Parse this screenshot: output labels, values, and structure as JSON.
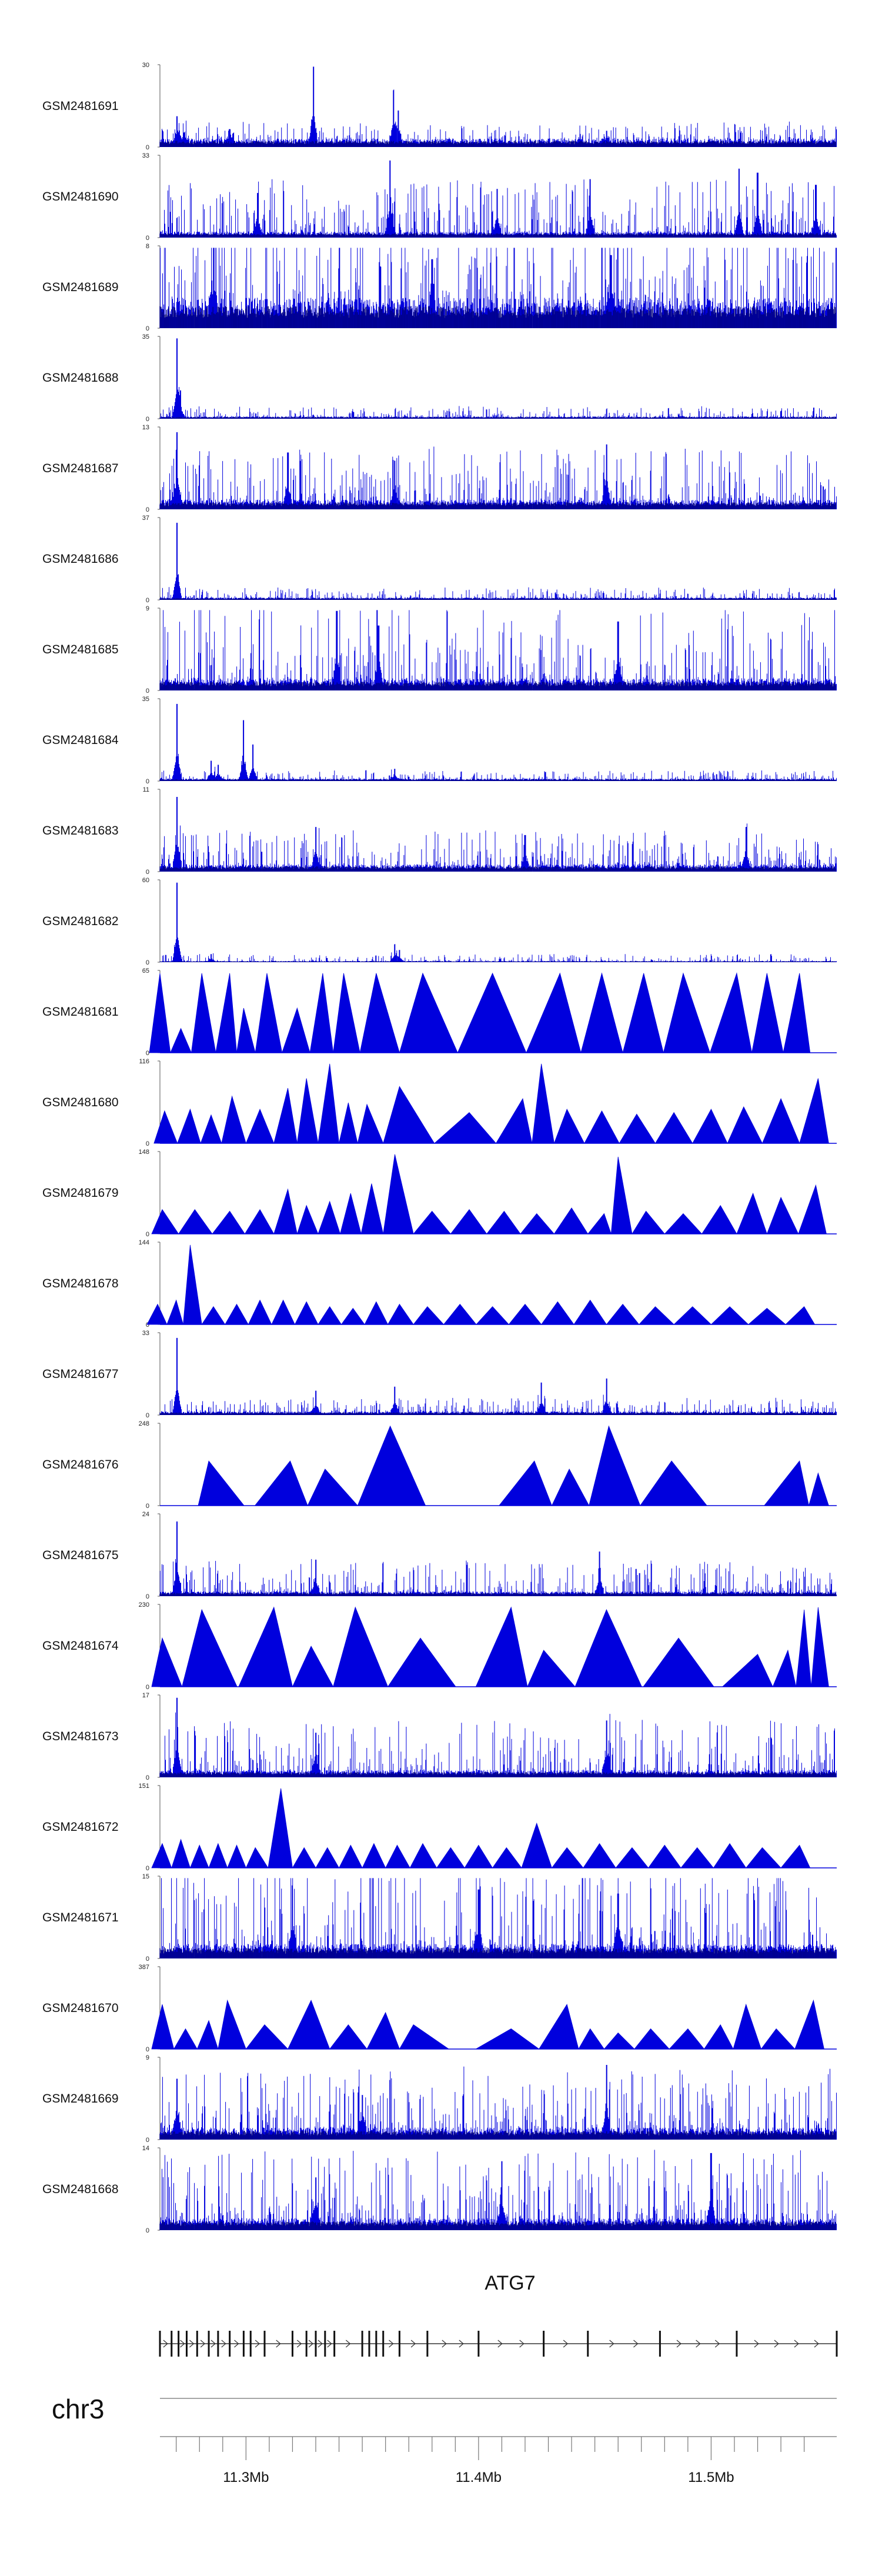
{
  "chart_data": {
    "type": "area",
    "description_text_free": true,
    "tracks": [
      {
        "name": "GSM2481691",
        "ymax": 30,
        "ymin": 0,
        "kind": "dense",
        "seed": 91,
        "base": 0.07,
        "noise": 0.1,
        "spikes": [
          [
            11.2704,
            0.38
          ],
          [
            11.2735,
            0.18
          ],
          [
            11.293,
            0.22
          ],
          [
            11.329,
            1.0
          ],
          [
            11.3635,
            0.7
          ],
          [
            11.3655,
            0.45
          ],
          [
            11.455,
            0.2
          ]
        ]
      },
      {
        "name": "GSM2481690",
        "ymax": 33,
        "ymin": 0,
        "kind": "mixed",
        "seed": 90,
        "base": 0.05,
        "noise": 0.3,
        "spikes": [
          [
            11.305,
            0.55
          ],
          [
            11.362,
            0.95
          ],
          [
            11.408,
            0.6
          ],
          [
            11.448,
            0.72
          ],
          [
            11.512,
            0.85
          ],
          [
            11.52,
            0.8
          ],
          [
            11.545,
            0.65
          ]
        ]
      },
      {
        "name": "GSM2481689",
        "ymax": 8,
        "ymin": 0,
        "kind": "dense",
        "seed": 89,
        "base": 0.25,
        "noise": 0.55,
        "spikes": [
          [
            11.286,
            1.0
          ],
          [
            11.38,
            0.85
          ],
          [
            11.457,
            0.9
          ]
        ]
      },
      {
        "name": "GSM2481688",
        "ymax": 35,
        "ymin": 0,
        "kind": "dense",
        "seed": 88,
        "base": 0.02,
        "noise": 0.06,
        "spikes": [
          [
            11.2704,
            0.98
          ],
          [
            11.2718,
            0.35
          ]
        ]
      },
      {
        "name": "GSM2481687",
        "ymax": 13,
        "ymin": 0,
        "kind": "dense",
        "seed": 87,
        "base": 0.08,
        "noise": 0.3,
        "spikes": [
          [
            11.2704,
            0.95
          ],
          [
            11.318,
            0.7
          ],
          [
            11.364,
            0.6
          ],
          [
            11.455,
            0.8
          ]
        ]
      },
      {
        "name": "GSM2481686",
        "ymax": 37,
        "ymin": 0,
        "kind": "dense",
        "seed": 86,
        "base": 0.02,
        "noise": 0.06,
        "spikes": [
          [
            11.2704,
            0.95
          ]
        ]
      },
      {
        "name": "GSM2481685",
        "ymax": 9,
        "ymin": 0,
        "kind": "dense",
        "seed": 85,
        "base": 0.1,
        "noise": 0.45,
        "spikes": [
          [
            11.339,
            0.98
          ],
          [
            11.357,
            0.8
          ],
          [
            11.46,
            0.85
          ]
        ]
      },
      {
        "name": "GSM2481684",
        "ymax": 35,
        "ymin": 0,
        "kind": "dense",
        "seed": 84,
        "base": 0.02,
        "noise": 0.05,
        "spikes": [
          [
            11.2704,
            0.95
          ],
          [
            11.285,
            0.25
          ],
          [
            11.288,
            0.2
          ],
          [
            11.299,
            0.75
          ],
          [
            11.303,
            0.45
          ],
          [
            11.364,
            0.15
          ]
        ]
      },
      {
        "name": "GSM2481683",
        "ymax": 11,
        "ymin": 0,
        "kind": "dense",
        "seed": 83,
        "base": 0.06,
        "noise": 0.2,
        "spikes": [
          [
            11.2704,
            0.92
          ],
          [
            11.33,
            0.55
          ],
          [
            11.42,
            0.45
          ],
          [
            11.515,
            0.55
          ]
        ]
      },
      {
        "name": "GSM2481682",
        "ymax": 60,
        "ymin": 0,
        "kind": "dense",
        "seed": 82,
        "base": 0.01,
        "noise": 0.04,
        "spikes": [
          [
            11.2704,
            0.98
          ],
          [
            11.285,
            0.1
          ],
          [
            11.364,
            0.22
          ],
          [
            11.366,
            0.15
          ]
        ]
      },
      {
        "name": "GSM2481681",
        "ymax": 65,
        "ymin": 0,
        "kind": "sparse",
        "peaks": [
          [
            11.263,
            0.98
          ],
          [
            11.272,
            0.3
          ],
          [
            11.281,
            0.98
          ],
          [
            11.293,
            0.98
          ],
          [
            11.299,
            0.55
          ],
          [
            11.309,
            0.98
          ],
          [
            11.322,
            0.55
          ],
          [
            11.333,
            0.98
          ],
          [
            11.342,
            0.98
          ],
          [
            11.356,
            0.98
          ],
          [
            11.376,
            0.98
          ],
          [
            11.406,
            0.98
          ],
          [
            11.435,
            0.98
          ],
          [
            11.453,
            0.98
          ],
          [
            11.471,
            0.98
          ],
          [
            11.488,
            0.98
          ],
          [
            11.511,
            0.98
          ],
          [
            11.524,
            0.98
          ],
          [
            11.538,
            0.98
          ]
        ]
      },
      {
        "name": "GSM2481680",
        "ymax": 116,
        "ymin": 0,
        "kind": "sparse",
        "peaks": [
          [
            11.265,
            0.4
          ],
          [
            11.276,
            0.42
          ],
          [
            11.285,
            0.35
          ],
          [
            11.294,
            0.58
          ],
          [
            11.306,
            0.42
          ],
          [
            11.318,
            0.68
          ],
          [
            11.326,
            0.8
          ],
          [
            11.336,
            0.98
          ],
          [
            11.344,
            0.5
          ],
          [
            11.352,
            0.48
          ],
          [
            11.366,
            0.7
          ],
          [
            11.396,
            0.38
          ],
          [
            11.419,
            0.55
          ],
          [
            11.427,
            0.98
          ],
          [
            11.438,
            0.42
          ],
          [
            11.453,
            0.4
          ],
          [
            11.468,
            0.36
          ],
          [
            11.484,
            0.38
          ],
          [
            11.5,
            0.42
          ],
          [
            11.514,
            0.45
          ],
          [
            11.53,
            0.55
          ],
          [
            11.546,
            0.8
          ]
        ]
      },
      {
        "name": "GSM2481679",
        "ymax": 148,
        "ymin": 0,
        "kind": "sparse",
        "peaks": [
          [
            11.264,
            0.3
          ],
          [
            11.278,
            0.3
          ],
          [
            11.293,
            0.28
          ],
          [
            11.306,
            0.3
          ],
          [
            11.318,
            0.55
          ],
          [
            11.326,
            0.35
          ],
          [
            11.336,
            0.4
          ],
          [
            11.345,
            0.5
          ],
          [
            11.354,
            0.62
          ],
          [
            11.364,
            0.98
          ],
          [
            11.38,
            0.28
          ],
          [
            11.396,
            0.3
          ],
          [
            11.411,
            0.28
          ],
          [
            11.425,
            0.25
          ],
          [
            11.44,
            0.32
          ],
          [
            11.454,
            0.25
          ],
          [
            11.46,
            0.95
          ],
          [
            11.472,
            0.28
          ],
          [
            11.488,
            0.25
          ],
          [
            11.504,
            0.35
          ],
          [
            11.518,
            0.5
          ],
          [
            11.53,
            0.45
          ],
          [
            11.545,
            0.6
          ]
        ]
      },
      {
        "name": "GSM2481678",
        "ymax": 144,
        "ymin": 0,
        "kind": "sparse",
        "peaks": [
          [
            11.262,
            0.25
          ],
          [
            11.27,
            0.3
          ],
          [
            11.276,
            0.98
          ],
          [
            11.286,
            0.22
          ],
          [
            11.296,
            0.25
          ],
          [
            11.306,
            0.3
          ],
          [
            11.316,
            0.3
          ],
          [
            11.326,
            0.28
          ],
          [
            11.336,
            0.22
          ],
          [
            11.346,
            0.2
          ],
          [
            11.356,
            0.28
          ],
          [
            11.366,
            0.25
          ],
          [
            11.378,
            0.22
          ],
          [
            11.392,
            0.25
          ],
          [
            11.406,
            0.22
          ],
          [
            11.42,
            0.25
          ],
          [
            11.434,
            0.28
          ],
          [
            11.448,
            0.3
          ],
          [
            11.462,
            0.25
          ],
          [
            11.476,
            0.22
          ],
          [
            11.492,
            0.22
          ],
          [
            11.508,
            0.22
          ],
          [
            11.524,
            0.2
          ],
          [
            11.54,
            0.22
          ]
        ]
      },
      {
        "name": "GSM2481677",
        "ymax": 33,
        "ymin": 0,
        "kind": "dense",
        "seed": 77,
        "base": 0.03,
        "noise": 0.08,
        "spikes": [
          [
            11.2704,
            0.95
          ],
          [
            11.33,
            0.3
          ],
          [
            11.364,
            0.35
          ],
          [
            11.427,
            0.4
          ],
          [
            11.455,
            0.45
          ]
        ]
      },
      {
        "name": "GSM2481676",
        "ymax": 248,
        "ymin": 0,
        "kind": "sparse",
        "peaks": [
          [
            11.284,
            0.55
          ],
          [
            11.319,
            0.55
          ],
          [
            11.334,
            0.45
          ],
          [
            11.362,
            0.98
          ],
          [
            11.424,
            0.55
          ],
          [
            11.439,
            0.45
          ],
          [
            11.456,
            0.98
          ],
          [
            11.483,
            0.55
          ],
          [
            11.538,
            0.55
          ],
          [
            11.546,
            0.4
          ]
        ]
      },
      {
        "name": "GSM2481675",
        "ymax": 24,
        "ymin": 0,
        "kind": "dense",
        "seed": 75,
        "base": 0.04,
        "noise": 0.18,
        "spikes": [
          [
            11.2704,
            0.92
          ],
          [
            11.33,
            0.45
          ],
          [
            11.452,
            0.55
          ]
        ]
      },
      {
        "name": "GSM2481674",
        "ymax": 230,
        "ymin": 0,
        "kind": "sparse",
        "peaks": [
          [
            11.264,
            0.6
          ],
          [
            11.281,
            0.95
          ],
          [
            11.312,
            0.98
          ],
          [
            11.328,
            0.5
          ],
          [
            11.347,
            0.98
          ],
          [
            11.375,
            0.6
          ],
          [
            11.414,
            0.98
          ],
          [
            11.428,
            0.45
          ],
          [
            11.455,
            0.95
          ],
          [
            11.486,
            0.6
          ],
          [
            11.52,
            0.4
          ],
          [
            11.533,
            0.45
          ],
          [
            11.54,
            0.95
          ],
          [
            11.546,
            0.98
          ]
        ]
      },
      {
        "name": "GSM2481673",
        "ymax": 17,
        "ymin": 0,
        "kind": "dense",
        "seed": 73,
        "base": 0.06,
        "noise": 0.3,
        "spikes": [
          [
            11.2704,
            0.98
          ],
          [
            11.33,
            0.55
          ],
          [
            11.455,
            0.7
          ]
        ]
      },
      {
        "name": "GSM2481672",
        "ymax": 151,
        "ymin": 0,
        "kind": "sparse",
        "peaks": [
          [
            11.264,
            0.3
          ],
          [
            11.272,
            0.35
          ],
          [
            11.28,
            0.28
          ],
          [
            11.288,
            0.3
          ],
          [
            11.296,
            0.28
          ],
          [
            11.304,
            0.25
          ],
          [
            11.315,
            0.98
          ],
          [
            11.325,
            0.25
          ],
          [
            11.335,
            0.25
          ],
          [
            11.345,
            0.28
          ],
          [
            11.355,
            0.3
          ],
          [
            11.365,
            0.28
          ],
          [
            11.376,
            0.3
          ],
          [
            11.388,
            0.25
          ],
          [
            11.4,
            0.28
          ],
          [
            11.412,
            0.25
          ],
          [
            11.425,
            0.55
          ],
          [
            11.438,
            0.25
          ],
          [
            11.452,
            0.3
          ],
          [
            11.466,
            0.25
          ],
          [
            11.48,
            0.28
          ],
          [
            11.494,
            0.25
          ],
          [
            11.508,
            0.3
          ],
          [
            11.522,
            0.25
          ],
          [
            11.538,
            0.28
          ]
        ]
      },
      {
        "name": "GSM2481671",
        "ymax": 15,
        "ymin": 0,
        "kind": "dense",
        "seed": 71,
        "base": 0.12,
        "noise": 0.55,
        "spikes": [
          [
            11.32,
            0.9
          ],
          [
            11.4,
            0.85
          ],
          [
            11.46,
            0.8
          ]
        ]
      },
      {
        "name": "GSM2481670",
        "ymax": 387,
        "ymin": 0,
        "kind": "sparse",
        "peaks": [
          [
            11.264,
            0.55
          ],
          [
            11.274,
            0.25
          ],
          [
            11.284,
            0.35
          ],
          [
            11.292,
            0.6
          ],
          [
            11.308,
            0.3
          ],
          [
            11.328,
            0.6
          ],
          [
            11.344,
            0.3
          ],
          [
            11.36,
            0.45
          ],
          [
            11.372,
            0.3
          ],
          [
            11.414,
            0.25
          ],
          [
            11.438,
            0.55
          ],
          [
            11.448,
            0.25
          ],
          [
            11.46,
            0.2
          ],
          [
            11.474,
            0.25
          ],
          [
            11.49,
            0.25
          ],
          [
            11.504,
            0.3
          ],
          [
            11.515,
            0.55
          ],
          [
            11.528,
            0.25
          ],
          [
            11.544,
            0.6
          ]
        ]
      },
      {
        "name": "GSM2481669",
        "ymax": 9,
        "ymin": 0,
        "kind": "dense",
        "seed": 69,
        "base": 0.1,
        "noise": 0.35,
        "spikes": [
          [
            11.2704,
            0.75
          ],
          [
            11.455,
            0.92
          ],
          [
            11.35,
            0.55
          ]
        ]
      },
      {
        "name": "GSM2481668",
        "ymax": 14,
        "ymin": 0,
        "kind": "dense",
        "seed": 68,
        "base": 0.1,
        "noise": 0.4,
        "spikes": [
          [
            11.41,
            0.85
          ],
          [
            11.5,
            0.95
          ],
          [
            11.33,
            0.65
          ]
        ]
      }
    ],
    "gene": {
      "name": "ATG7",
      "start": 11.263,
      "end": 11.554,
      "strand": "+",
      "exons": [
        11.263,
        11.268,
        11.271,
        11.2745,
        11.279,
        11.284,
        11.288,
        11.293,
        11.299,
        11.302,
        11.308,
        11.32,
        11.326,
        11.33,
        11.334,
        11.338,
        11.35,
        11.353,
        11.356,
        11.359,
        11.366,
        11.378,
        11.4,
        11.428,
        11.447,
        11.478,
        11.511,
        11.554
      ]
    },
    "chromosome": "chr3",
    "x_axis": {
      "unit": "Mb",
      "range": [
        11.263,
        11.554
      ],
      "ticks": [
        11.27,
        11.28,
        11.29,
        11.3,
        11.31,
        11.32,
        11.33,
        11.34,
        11.35,
        11.36,
        11.37,
        11.38,
        11.39,
        11.4,
        11.41,
        11.42,
        11.43,
        11.44,
        11.45,
        11.46,
        11.47,
        11.48,
        11.49,
        11.5,
        11.51,
        11.52,
        11.53,
        11.54
      ],
      "labeled_ticks": [
        {
          "value": 11.3,
          "label": "11.3Mb"
        },
        {
          "value": 11.4,
          "label": "11.4Mb"
        },
        {
          "value": 11.5,
          "label": "11.5Mb"
        }
      ]
    },
    "colors": {
      "signal": "#0000dd",
      "signal_dark": "#00007a",
      "axis": "#555555",
      "gene": "#333333"
    }
  }
}
